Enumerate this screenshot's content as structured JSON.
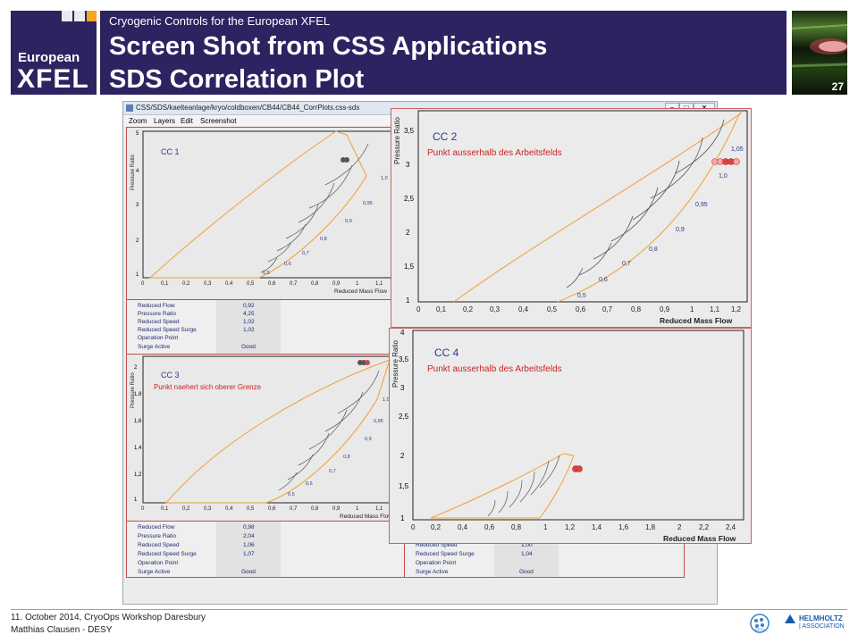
{
  "header": {
    "logo_line1": "European",
    "logo_line2": "XFEL",
    "subtitle": "Cryogenic Controls for the European XFEL",
    "title_line1": "Screen Shot from CSS Applications",
    "title_line2": "SDS Correlation Plot",
    "page_number": "27",
    "colors": {
      "navy": "#2d2361",
      "accent": "#f5a623"
    }
  },
  "window": {
    "title": "CSS/SDS/kaelteanlage/kryo/coldboxen/CB44/CB44_CorrPlots.css-sds",
    "menu": [
      "Zoom",
      "Layers",
      "Edit",
      "Screenshot"
    ],
    "controls": [
      "minimize-icon",
      "maximize-icon",
      "close-icon"
    ]
  },
  "axis_labels": {
    "x": "Reduced Mass Flow",
    "y": "Pressure Ratio"
  },
  "plots": {
    "cc1": {
      "name": "CC 1",
      "message": "",
      "yticks": [
        "1",
        "2",
        "3",
        "4",
        "5"
      ],
      "xticks": [
        "0",
        "0,1",
        "0,2",
        "0,3",
        "0,4",
        "0,5",
        "0,6",
        "0,7",
        "0,8",
        "0,9",
        "1",
        "1,1"
      ],
      "speed_labels": [
        "0,5",
        "0,6",
        "0,7",
        "0,8",
        "0,9",
        "0,95",
        "1,0"
      ]
    },
    "cc2": {
      "name": "CC 2",
      "message": "Punkt ausserhalb des Arbeitsfelds",
      "yticks": [
        "1",
        "1,5",
        "2",
        "2,5",
        "3",
        "3,5"
      ],
      "xticks": [
        "0",
        "0,1",
        "0,2",
        "0,3",
        "0,4",
        "0,5",
        "0,6",
        "0,7",
        "0,8",
        "0,9",
        "1",
        "1,1",
        "1,2"
      ],
      "speed_labels": [
        "0,5",
        "0,6",
        "0,7",
        "0,8",
        "0,9",
        "0,95",
        "1,0",
        "1,05"
      ]
    },
    "cc3": {
      "name": "CC 3",
      "message": "Punkt naehert sich oberer Grenze",
      "yticks": [
        "1",
        "1,2",
        "1,4",
        "1,6",
        "1,8",
        "2"
      ],
      "xticks": [
        "0",
        "0,1",
        "0,2",
        "0,3",
        "0,4",
        "0,5",
        "0,6",
        "0,7",
        "0,8",
        "0,9",
        "1",
        "1,1"
      ],
      "speed_labels": [
        "0,5",
        "0,6",
        "0,7",
        "0,8",
        "0,9",
        "0,95",
        "1,0"
      ]
    },
    "cc4": {
      "name": "CC 4",
      "message": "Punkt ausserhalb des Arbeitsfelds",
      "yticks": [
        "1",
        "1,5",
        "2",
        "2,5",
        "3",
        "3,5",
        "4"
      ],
      "xticks": [
        "0",
        "0,2",
        "0,4",
        "0,6",
        "0,8",
        "1",
        "1,2",
        "1,4",
        "1,6",
        "1,8",
        "2",
        "2,2",
        "2,4"
      ]
    }
  },
  "readouts": {
    "cc1": {
      "rows": [
        {
          "label": "Reduced Flow",
          "value": "0,92"
        },
        {
          "label": "Pressure Ratio",
          "value": "4,25"
        },
        {
          "label": "Reduced Speed",
          "value": "1,02"
        },
        {
          "label": "Reduced Speed Surge",
          "value": "1,02"
        },
        {
          "label": "Operation Point",
          "value": ""
        },
        {
          "label": "Surge Active",
          "value": "Good"
        }
      ]
    },
    "cc3": {
      "rows": [
        {
          "label": "Reduced Flow",
          "value": "0,98"
        },
        {
          "label": "Pressure Ratio",
          "value": "2,04"
        },
        {
          "label": "Reduced Speed",
          "value": "1,06"
        },
        {
          "label": "Reduced Speed Surge",
          "value": "1,07"
        },
        {
          "label": "Operation Point",
          "value": ""
        },
        {
          "label": "Surge Active",
          "value": "Good"
        }
      ]
    },
    "cc4": {
      "rows": [
        {
          "label": "Reduced Speed",
          "value": "1,00"
        },
        {
          "label": "Reduced Speed Surge",
          "value": "1,04"
        },
        {
          "label": "Operation Point",
          "value": ""
        },
        {
          "label": "Surge Active",
          "value": "Good"
        }
      ]
    }
  },
  "footer": {
    "date_event": "11. October 2014, CryoOps Workshop Daresbury",
    "author": "Matthias Clausen - DESY",
    "logo_desy": "DESY",
    "logo_helmholtz_1": "HELMHOLTZ",
    "logo_helmholtz_2": "| ASSOCIATION"
  }
}
